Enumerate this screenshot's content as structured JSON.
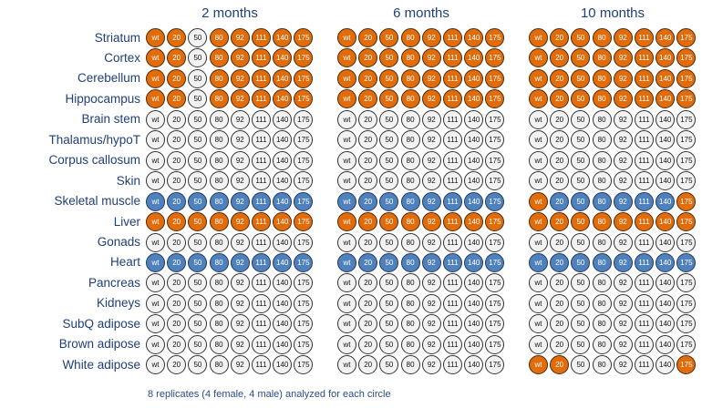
{
  "titles": [
    "2 months",
    "6 months",
    "10 months"
  ],
  "genotypes": [
    "wt",
    "20",
    "50",
    "80",
    "92",
    "111",
    "140",
    "175"
  ],
  "colors": {
    "orange": "#e36c0a",
    "blue": "#4f81bd",
    "none": "#f2f2f2"
  },
  "footnote": "8 replicates (4 female, 4 male) analyzed for each circle",
  "rows": [
    {
      "label": "Striatum",
      "panels": [
        [
          "orange",
          "orange",
          "none",
          "orange",
          "orange",
          "orange",
          "orange",
          "orange"
        ],
        [
          "orange",
          "orange",
          "orange",
          "orange",
          "orange",
          "orange",
          "orange",
          "orange"
        ],
        [
          "orange",
          "orange",
          "orange",
          "orange",
          "orange",
          "orange",
          "orange",
          "orange"
        ]
      ]
    },
    {
      "label": "Cortex",
      "panels": [
        [
          "orange",
          "orange",
          "none",
          "orange",
          "orange",
          "orange",
          "orange",
          "orange"
        ],
        [
          "orange",
          "orange",
          "orange",
          "orange",
          "orange",
          "orange",
          "orange",
          "orange"
        ],
        [
          "orange",
          "orange",
          "orange",
          "orange",
          "orange",
          "orange",
          "orange",
          "orange"
        ]
      ]
    },
    {
      "label": "Cerebellum",
      "panels": [
        [
          "orange",
          "orange",
          "none",
          "orange",
          "orange",
          "orange",
          "orange",
          "orange"
        ],
        [
          "orange",
          "orange",
          "orange",
          "orange",
          "orange",
          "orange",
          "orange",
          "orange"
        ],
        [
          "orange",
          "orange",
          "orange",
          "orange",
          "orange",
          "orange",
          "orange",
          "orange"
        ]
      ]
    },
    {
      "label": "Hippocampus",
      "panels": [
        [
          "orange",
          "orange",
          "none",
          "orange",
          "orange",
          "orange",
          "orange",
          "orange"
        ],
        [
          "orange",
          "orange",
          "orange",
          "orange",
          "orange",
          "orange",
          "orange",
          "orange"
        ],
        [
          "orange",
          "orange",
          "orange",
          "orange",
          "orange",
          "orange",
          "orange",
          "orange"
        ]
      ]
    },
    {
      "label": "Brain stem",
      "panels": [
        [
          "none",
          "none",
          "none",
          "none",
          "none",
          "none",
          "none",
          "none"
        ],
        [
          "none",
          "none",
          "none",
          "none",
          "none",
          "none",
          "none",
          "none"
        ],
        [
          "none",
          "none",
          "none",
          "none",
          "none",
          "none",
          "none",
          "none"
        ]
      ]
    },
    {
      "label": "Thalamus/hypoT",
      "panels": [
        [
          "none",
          "none",
          "none",
          "none",
          "none",
          "none",
          "none",
          "none"
        ],
        [
          "none",
          "none",
          "none",
          "none",
          "none",
          "none",
          "none",
          "none"
        ],
        [
          "none",
          "none",
          "none",
          "none",
          "none",
          "none",
          "none",
          "none"
        ]
      ]
    },
    {
      "label": "Corpus callosum",
      "panels": [
        [
          "none",
          "none",
          "none",
          "none",
          "none",
          "none",
          "none",
          "none"
        ],
        [
          "none",
          "none",
          "none",
          "none",
          "none",
          "none",
          "none",
          "none"
        ],
        [
          "none",
          "none",
          "none",
          "none",
          "none",
          "none",
          "none",
          "none"
        ]
      ]
    },
    {
      "label": "Skin",
      "panels": [
        [
          "none",
          "none",
          "none",
          "none",
          "none",
          "none",
          "none",
          "none"
        ],
        [
          "none",
          "none",
          "none",
          "none",
          "none",
          "none",
          "none",
          "none"
        ],
        [
          "none",
          "none",
          "none",
          "none",
          "none",
          "none",
          "none",
          "none"
        ]
      ]
    },
    {
      "label": "Skeletal muscle",
      "panels": [
        [
          "blue",
          "blue",
          "blue",
          "blue",
          "blue",
          "blue",
          "blue",
          "blue"
        ],
        [
          "blue",
          "blue",
          "blue",
          "blue",
          "blue",
          "blue",
          "blue",
          "blue"
        ],
        [
          "orange",
          "blue",
          "blue",
          "blue",
          "blue",
          "blue",
          "blue",
          "orange"
        ]
      ]
    },
    {
      "label": "Liver",
      "panels": [
        [
          "orange",
          "orange",
          "orange",
          "orange",
          "orange",
          "orange",
          "orange",
          "orange"
        ],
        [
          "orange",
          "orange",
          "orange",
          "orange",
          "orange",
          "orange",
          "orange",
          "orange"
        ],
        [
          "orange",
          "orange",
          "orange",
          "orange",
          "orange",
          "orange",
          "orange",
          "orange"
        ]
      ]
    },
    {
      "label": "Gonads",
      "panels": [
        [
          "none",
          "none",
          "none",
          "none",
          "none",
          "none",
          "none",
          "none"
        ],
        [
          "none",
          "none",
          "none",
          "none",
          "none",
          "none",
          "none",
          "none"
        ],
        [
          "none",
          "none",
          "none",
          "none",
          "none",
          "none",
          "none",
          "none"
        ]
      ]
    },
    {
      "label": "Heart",
      "panels": [
        [
          "blue",
          "blue",
          "blue",
          "blue",
          "blue",
          "blue",
          "blue",
          "blue"
        ],
        [
          "blue",
          "blue",
          "blue",
          "blue",
          "blue",
          "blue",
          "blue",
          "blue"
        ],
        [
          "blue",
          "blue",
          "blue",
          "blue",
          "blue",
          "blue",
          "blue",
          "blue"
        ]
      ]
    },
    {
      "label": "Pancreas",
      "panels": [
        [
          "none",
          "none",
          "none",
          "none",
          "none",
          "none",
          "none",
          "none"
        ],
        [
          "none",
          "none",
          "none",
          "none",
          "none",
          "none",
          "none",
          "none"
        ],
        [
          "none",
          "none",
          "none",
          "none",
          "none",
          "none",
          "none",
          "none"
        ]
      ]
    },
    {
      "label": "Kidneys",
      "panels": [
        [
          "none",
          "none",
          "none",
          "none",
          "none",
          "none",
          "none",
          "none"
        ],
        [
          "none",
          "none",
          "none",
          "none",
          "none",
          "none",
          "none",
          "none"
        ],
        [
          "none",
          "none",
          "none",
          "none",
          "none",
          "none",
          "none",
          "none"
        ]
      ]
    },
    {
      "label": "SubQ adipose",
      "panels": [
        [
          "none",
          "none",
          "none",
          "none",
          "none",
          "none",
          "none",
          "none"
        ],
        [
          "none",
          "none",
          "none",
          "none",
          "none",
          "none",
          "none",
          "none"
        ],
        [
          "none",
          "none",
          "none",
          "none",
          "none",
          "none",
          "none",
          "none"
        ]
      ]
    },
    {
      "label": "Brown adipose",
      "panels": [
        [
          "none",
          "none",
          "none",
          "none",
          "none",
          "none",
          "none",
          "none"
        ],
        [
          "none",
          "none",
          "none",
          "none",
          "none",
          "none",
          "none",
          "none"
        ],
        [
          "none",
          "none",
          "none",
          "none",
          "none",
          "none",
          "none",
          "none"
        ]
      ]
    },
    {
      "label": "White adipose",
      "panels": [
        [
          "none",
          "none",
          "none",
          "none",
          "none",
          "none",
          "none",
          "none"
        ],
        [
          "none",
          "none",
          "none",
          "none",
          "none",
          "none",
          "none",
          "none"
        ],
        [
          "orange",
          "orange",
          "none",
          "none",
          "none",
          "none",
          "none",
          "orange"
        ]
      ]
    }
  ]
}
